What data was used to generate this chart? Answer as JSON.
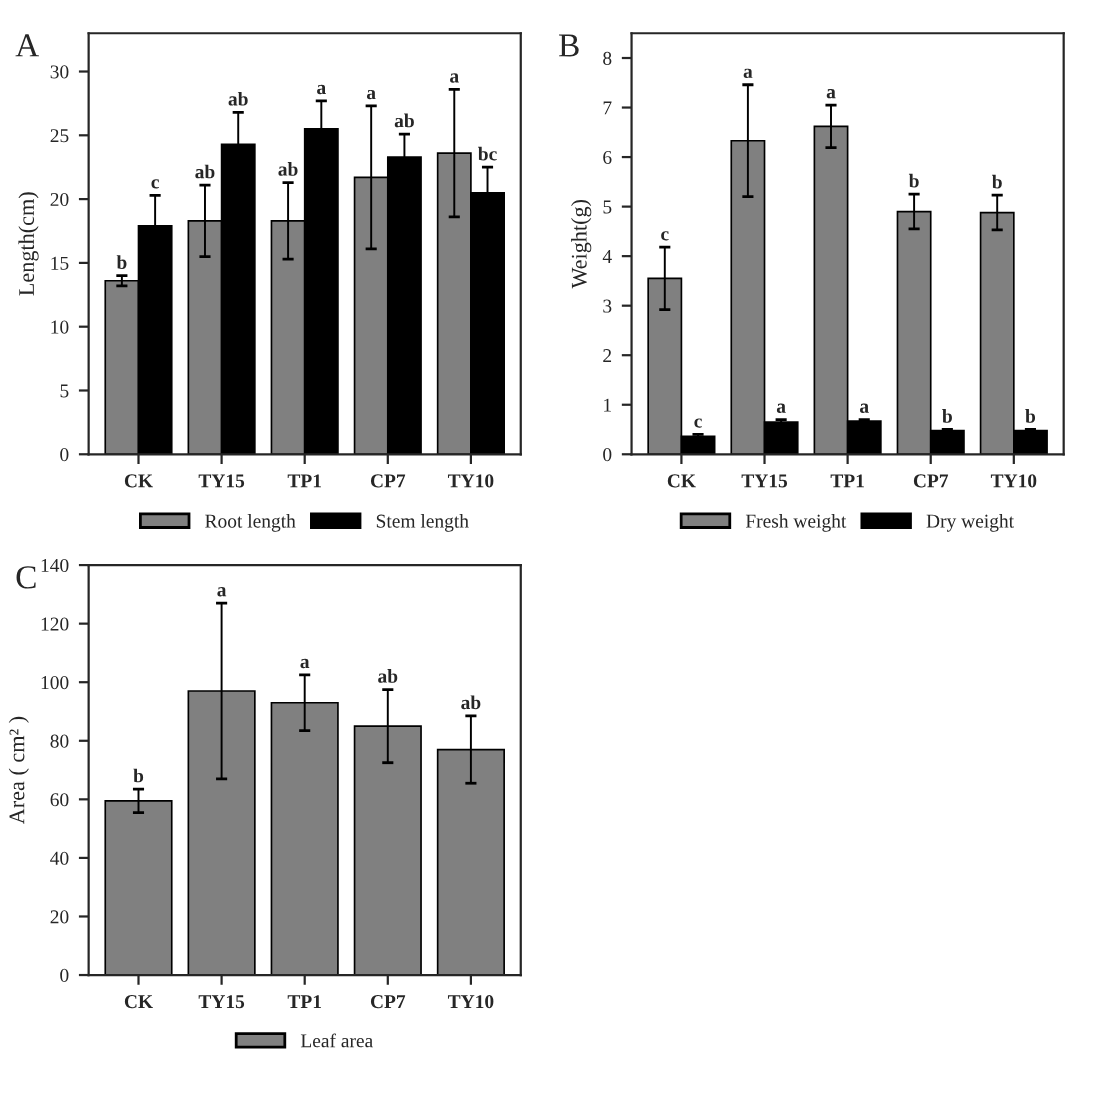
{
  "chart_data": [
    {
      "type": "bar",
      "title": "A",
      "ylabel": "Length(cm)",
      "categories": [
        "CK",
        "TY15",
        "TP1",
        "CP7",
        "TY10"
      ],
      "ylim": [
        0,
        33
      ],
      "yticks": [
        0,
        5,
        10,
        15,
        20,
        25,
        30
      ],
      "grid": false,
      "legend": "bottom",
      "series": [
        {
          "name": "Root length",
          "color": "#808080",
          "values": [
            13.6,
            18.3,
            18.3,
            21.7,
            23.6
          ],
          "errors": [
            0.4,
            2.8,
            3.0,
            5.6,
            5.0
          ]
        },
        {
          "name": "Stem length",
          "color": "#000000",
          "values": [
            17.9,
            24.3,
            25.5,
            23.3,
            20.5
          ],
          "errors": [
            2.4,
            2.5,
            2.2,
            1.8,
            2.0
          ]
        }
      ],
      "annotations": [
        "b",
        "c",
        "ab",
        "ab",
        "ab",
        "a",
        "a",
        "ab",
        "a",
        "bc"
      ]
    },
    {
      "type": "bar",
      "title": "B",
      "ylabel": "Weight(g)",
      "categories": [
        "CK",
        "TY15",
        "TP1",
        "CP7",
        "TY10"
      ],
      "ylim": [
        0,
        8.5
      ],
      "yticks": [
        0,
        1,
        2,
        3,
        4,
        5,
        6,
        7,
        8
      ],
      "grid": false,
      "legend": "bottom",
      "series": [
        {
          "name": "Fresh weight",
          "color": "#808080",
          "values": [
            3.55,
            6.33,
            6.62,
            4.9,
            4.88
          ],
          "errors": [
            0.63,
            1.13,
            0.43,
            0.35,
            0.35
          ]
        },
        {
          "name": "Dry weight",
          "color": "#000000",
          "values": [
            0.36,
            0.65,
            0.67,
            0.48,
            0.48
          ],
          "errors": [
            0.04,
            0.05,
            0.03,
            0.02,
            0.02
          ]
        }
      ],
      "annotations": [
        "c",
        "c",
        "a",
        "a",
        "a",
        "a",
        "b",
        "b",
        "b",
        "b"
      ]
    },
    {
      "type": "bar",
      "title": "C",
      "ylabel": "Area ( cm² )",
      "categories": [
        "CK",
        "TY15",
        "TP1",
        "CP7",
        "TY10"
      ],
      "ylim": [
        0,
        140
      ],
      "yticks": [
        0,
        20,
        40,
        60,
        80,
        100,
        120,
        140
      ],
      "grid": false,
      "legend": "bottom",
      "series": [
        {
          "name": "Leaf area",
          "color": "#808080",
          "values": [
            59.5,
            97,
            93,
            85,
            77
          ],
          "errors": [
            4,
            30,
            9.5,
            12.5,
            11.5
          ]
        }
      ],
      "annotations": [
        "b",
        "a",
        "a",
        "ab",
        "ab"
      ]
    }
  ]
}
